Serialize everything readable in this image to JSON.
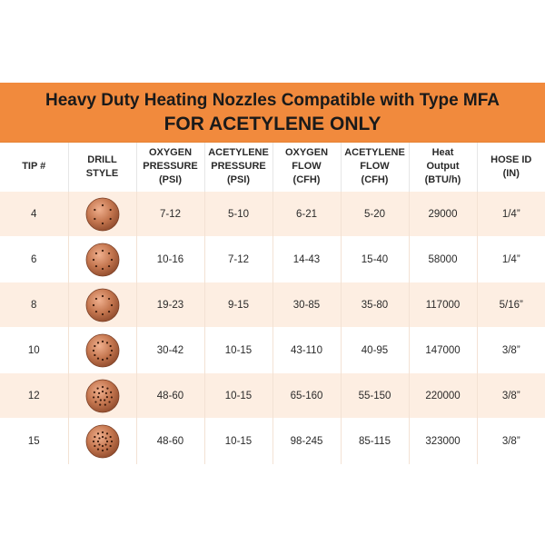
{
  "title": {
    "line1": "Heavy Duty Heating Nozzles Compatible with Type MFA",
    "line2": "FOR ACETYLENE ONLY"
  },
  "colors": {
    "banner": "#f18a3d",
    "row_shade": "#fdeee2",
    "copper": "#c4764f"
  },
  "headers": [
    [
      "TIP #"
    ],
    [
      "DRILL",
      "STYLE"
    ],
    [
      "OXYGEN",
      "PRESSURE",
      "(PSI)"
    ],
    [
      "ACETYLENE",
      "PRESSURE",
      "(PSI)"
    ],
    [
      "OXYGEN",
      "FLOW",
      "(CFH)"
    ],
    [
      "ACETYLENE",
      "FLOW",
      "(CFH)"
    ],
    [
      "Heat",
      "Output",
      "(BTU/h)"
    ],
    [
      "HOSE ID",
      "(IN)"
    ]
  ],
  "rows": [
    {
      "tip": "4",
      "drill_icon": "nozzle-6-hole-icon",
      "oxy_pressure": "7-12",
      "ace_pressure": "5-10",
      "oxy_flow": "6-21",
      "ace_flow": "5-20",
      "heat": "29000",
      "hose": "1/4”"
    },
    {
      "tip": "6",
      "drill_icon": "nozzle-8-hole-icon",
      "oxy_pressure": "10-16",
      "ace_pressure": "7-12",
      "oxy_flow": "14-43",
      "ace_flow": "15-40",
      "heat": "58000",
      "hose": "1/4”"
    },
    {
      "tip": "8",
      "drill_icon": "nozzle-8-hole-icon",
      "oxy_pressure": "19-23",
      "ace_pressure": "9-15",
      "oxy_flow": "30-85",
      "ace_flow": "35-80",
      "heat": "117000",
      "hose": "5/16”"
    },
    {
      "tip": "10",
      "drill_icon": "nozzle-12-hole-icon",
      "oxy_pressure": "30-42",
      "ace_pressure": "10-15",
      "oxy_flow": "43-110",
      "ace_flow": "40-95",
      "heat": "147000",
      "hose": "3/8”"
    },
    {
      "tip": "12",
      "drill_icon": "nozzle-18-hole-icon",
      "oxy_pressure": "48-60",
      "ace_pressure": "10-15",
      "oxy_flow": "65-160",
      "ace_flow": "55-150",
      "heat": "220000",
      "hose": "3/8”"
    },
    {
      "tip": "15",
      "drill_icon": "nozzle-20-hole-icon",
      "oxy_pressure": "48-60",
      "ace_pressure": "10-15",
      "oxy_flow": "98-245",
      "ace_flow": "85-115",
      "heat": "323000",
      "hose": "3/8”"
    }
  ]
}
